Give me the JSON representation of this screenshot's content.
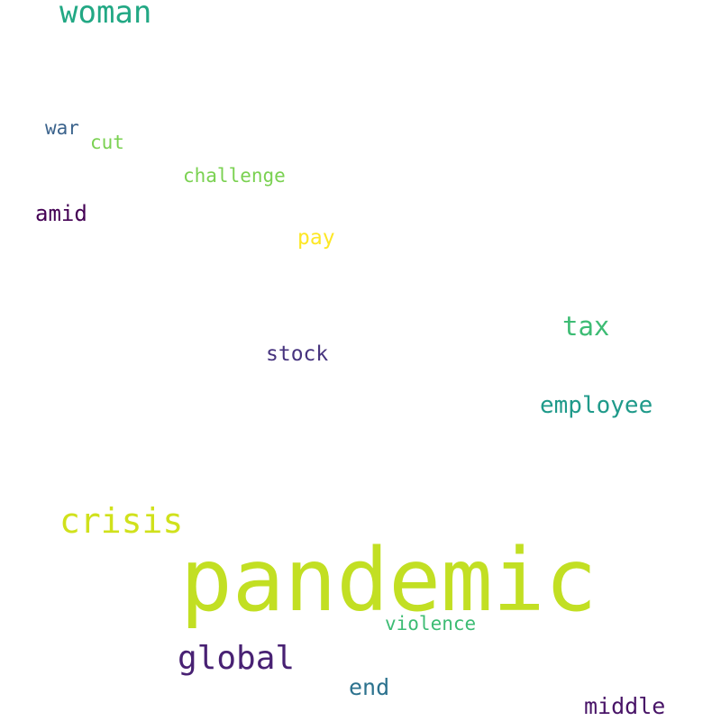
{
  "words": [
    {
      "text": "woman",
      "color": "#22a884"
    },
    {
      "text": "war",
      "color": "#3b638c"
    },
    {
      "text": "cut",
      "color": "#7ad151"
    },
    {
      "text": "challenge",
      "color": "#7ad151"
    },
    {
      "text": "amid",
      "color": "#440154"
    },
    {
      "text": "pay",
      "color": "#fde725"
    },
    {
      "text": "tax",
      "color": "#3dbc74"
    },
    {
      "text": "stock",
      "color": "#46337e"
    },
    {
      "text": "employee",
      "color": "#1f9a8a"
    },
    {
      "text": "crisis",
      "color": "#d0e11c"
    },
    {
      "text": "pandemic",
      "color": "#c2df23"
    },
    {
      "text": "violence",
      "color": "#3dbc74"
    },
    {
      "text": "global",
      "color": "#482173"
    },
    {
      "text": "end",
      "color": "#2c728e"
    },
    {
      "text": "middle",
      "color": "#481467"
    }
  ]
}
